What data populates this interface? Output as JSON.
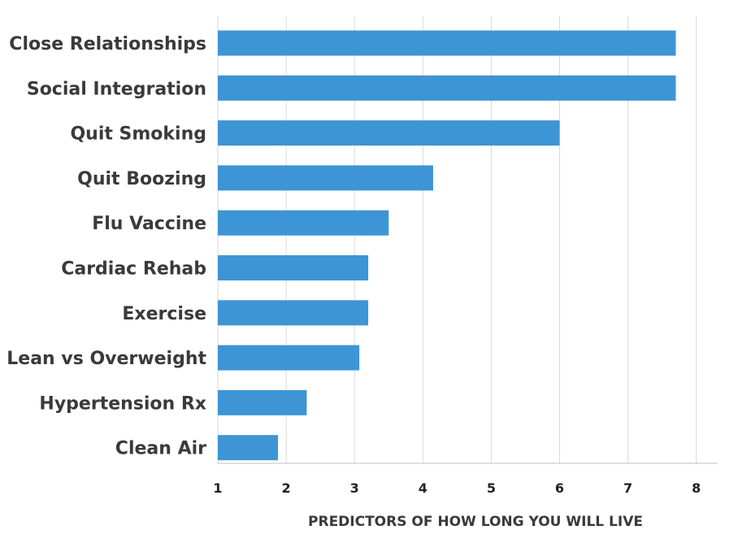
{
  "chart_data": {
    "type": "bar",
    "orientation": "horizontal",
    "categories": [
      "Close Relationships",
      "Social Integration",
      "Quit Smoking",
      "Quit Boozing",
      "Flu Vaccine",
      "Cardiac Rehab",
      "Exercise",
      "Lean vs Overweight",
      "Hypertension Rx",
      "Clean Air"
    ],
    "values": [
      7.7,
      7.7,
      6.0,
      4.15,
      3.5,
      3.2,
      3.2,
      3.07,
      2.3,
      1.88
    ],
    "x_ticks": [
      "1",
      "2",
      "3",
      "4",
      "5",
      "6",
      "7",
      "8"
    ],
    "xlim": [
      1,
      8.33
    ],
    "xlabel": "PREDICTORS OF HOW LONG YOU WILL LIVE",
    "ylabel": "",
    "title": "",
    "grid": "vertical",
    "legend": "none",
    "bar_color": "#3d95d5"
  }
}
